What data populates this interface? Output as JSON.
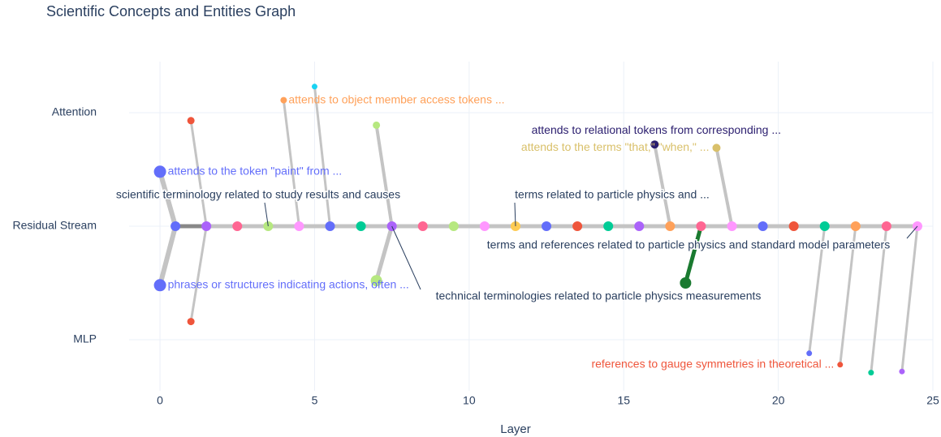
{
  "chart_data": {
    "type": "graph",
    "title": "Scientific Concepts and Entities Graph",
    "xlabel": "Layer",
    "xlim": [
      -1,
      25
    ],
    "xticks": [
      0,
      5,
      10,
      15,
      20,
      25
    ],
    "ylim": [
      -1.45,
      1.45
    ],
    "yticks": [
      {
        "value": 1,
        "label": "Attention"
      },
      {
        "value": 0,
        "label": "Residual Stream"
      },
      {
        "value": -1,
        "label": "MLP"
      }
    ],
    "grid": true,
    "nodes": [
      {
        "x": 0.5,
        "y": 0,
        "color": "#636efa",
        "size": 12
      },
      {
        "x": 1.5,
        "y": 0,
        "color": "#ab63fa",
        "size": 12
      },
      {
        "x": 2.5,
        "y": 0,
        "color": "#ff6692",
        "size": 12
      },
      {
        "x": 3.5,
        "y": 0,
        "color": "#b6e880",
        "size": 12
      },
      {
        "x": 4.5,
        "y": 0,
        "color": "#ff97ff",
        "size": 12
      },
      {
        "x": 5.5,
        "y": 0,
        "color": "#636efa",
        "size": 12
      },
      {
        "x": 6.5,
        "y": 0,
        "color": "#00cc96",
        "size": 12
      },
      {
        "x": 7.5,
        "y": 0,
        "color": "#ab63fa",
        "size": 12
      },
      {
        "x": 8.5,
        "y": 0,
        "color": "#ff6692",
        "size": 12
      },
      {
        "x": 9.5,
        "y": 0,
        "color": "#b6e880",
        "size": 12
      },
      {
        "x": 10.5,
        "y": 0,
        "color": "#ff97ff",
        "size": 12
      },
      {
        "x": 11.5,
        "y": 0,
        "color": "#fecb52",
        "size": 12
      },
      {
        "x": 12.5,
        "y": 0,
        "color": "#636efa",
        "size": 12
      },
      {
        "x": 13.5,
        "y": 0,
        "color": "#ef553b",
        "size": 12
      },
      {
        "x": 14.5,
        "y": 0,
        "color": "#00cc96",
        "size": 12
      },
      {
        "x": 15.5,
        "y": 0,
        "color": "#ab63fa",
        "size": 12
      },
      {
        "x": 16.5,
        "y": 0,
        "color": "#ffa15a",
        "size": 12
      },
      {
        "x": 17.5,
        "y": 0,
        "color": "#ff6692",
        "size": 12
      },
      {
        "x": 18.5,
        "y": 0,
        "color": "#ff97ff",
        "size": 12
      },
      {
        "x": 19.5,
        "y": 0,
        "color": "#636efa",
        "size": 12
      },
      {
        "x": 20.5,
        "y": 0,
        "color": "#ef553b",
        "size": 12
      },
      {
        "x": 21.5,
        "y": 0,
        "color": "#00cc96",
        "size": 12
      },
      {
        "x": 22.5,
        "y": 0,
        "color": "#ffa15a",
        "size": 12
      },
      {
        "x": 23.5,
        "y": 0,
        "color": "#ff6692",
        "size": 12
      },
      {
        "x": 24.5,
        "y": 0,
        "color": "#ff97ff",
        "size": 12
      },
      {
        "x": 0,
        "y": 0.48,
        "color": "#636efa",
        "size": 15,
        "label": "attends to the token \"paint\" from ..."
      },
      {
        "x": 0,
        "y": -0.52,
        "color": "#636efa",
        "size": 15,
        "label": "phrases or structures indicating actions, often ..."
      },
      {
        "x": 1,
        "y": 0.93,
        "color": "#ef553b",
        "size": 9
      },
      {
        "x": 1,
        "y": -0.84,
        "color": "#ef553b",
        "size": 9
      },
      {
        "x": 4,
        "y": 1.11,
        "color": "#ffa15a",
        "size": 8,
        "label": "attends to object member access tokens ..."
      },
      {
        "x": 5,
        "y": 1.23,
        "color": "#19d3f3",
        "size": 7
      },
      {
        "x": 7,
        "y": 0.89,
        "color": "#b6e880",
        "size": 9
      },
      {
        "x": 7,
        "y": -0.48,
        "color": "#b6e880",
        "size": 14
      },
      {
        "x": 16,
        "y": 0.72,
        "color": "#2a1d6e",
        "size": 10,
        "label": "attends to relational tokens from corresponding ..."
      },
      {
        "x": 18,
        "y": 0.69,
        "color": "#d9c06a",
        "size": 10,
        "label": "attends to the terms \"that,\" \"when,\" ..."
      },
      {
        "x": 17,
        "y": -0.5,
        "color": "#1a7a30",
        "size": 14
      },
      {
        "x": 21,
        "y": -1.12,
        "color": "#636efa",
        "size": 7
      },
      {
        "x": 22,
        "y": -1.22,
        "color": "#ef553b",
        "size": 7,
        "label": "references to gauge symmetries in theoretical ..."
      },
      {
        "x": 23,
        "y": -1.29,
        "color": "#00cc96",
        "size": 7
      },
      {
        "x": 24,
        "y": -1.28,
        "color": "#ab63fa",
        "size": 7
      }
    ],
    "edges": [
      {
        "source": 0,
        "target": 1,
        "weight": 5,
        "color": "#888888"
      },
      {
        "source": 1,
        "target": 2,
        "weight": 5,
        "color": "#c4c4c4"
      },
      {
        "source": 2,
        "target": 3,
        "weight": 5,
        "color": "#c4c4c4"
      },
      {
        "source": 3,
        "target": 4,
        "weight": 5,
        "color": "#c4c4c4"
      },
      {
        "source": 4,
        "target": 5,
        "weight": 5,
        "color": "#c4c4c4"
      },
      {
        "source": 5,
        "target": 6,
        "weight": 5,
        "color": "#c4c4c4"
      },
      {
        "source": 6,
        "target": 7,
        "weight": 5,
        "color": "#c4c4c4"
      },
      {
        "source": 7,
        "target": 8,
        "weight": 5,
        "color": "#c4c4c4"
      },
      {
        "source": 8,
        "target": 9,
        "weight": 5,
        "color": "#c4c4c4"
      },
      {
        "source": 9,
        "target": 10,
        "weight": 5,
        "color": "#c4c4c4"
      },
      {
        "source": 10,
        "target": 11,
        "weight": 5,
        "color": "#c4c4c4"
      },
      {
        "source": 11,
        "target": 12,
        "weight": 5,
        "color": "#c4c4c4"
      },
      {
        "source": 12,
        "target": 13,
        "weight": 5,
        "color": "#c4c4c4"
      },
      {
        "source": 13,
        "target": 14,
        "weight": 5,
        "color": "#c4c4c4"
      },
      {
        "source": 14,
        "target": 15,
        "weight": 5,
        "color": "#c4c4c4"
      },
      {
        "source": 15,
        "target": 16,
        "weight": 5,
        "color": "#c4c4c4"
      },
      {
        "source": 16,
        "target": 17,
        "weight": 5,
        "color": "#c4c4c4"
      },
      {
        "source": 17,
        "target": 18,
        "weight": 5,
        "color": "#c4c4c4"
      },
      {
        "source": 18,
        "target": 19,
        "weight": 5,
        "color": "#c4c4c4"
      },
      {
        "source": 19,
        "target": 20,
        "weight": 5,
        "color": "#c4c4c4"
      },
      {
        "source": 20,
        "target": 21,
        "weight": 5,
        "color": "#c4c4c4"
      },
      {
        "source": 21,
        "target": 22,
        "weight": 5,
        "color": "#c4c4c4"
      },
      {
        "source": 22,
        "target": 23,
        "weight": 5,
        "color": "#c4c4c4"
      },
      {
        "source": 23,
        "target": 24,
        "weight": 5,
        "color": "#c4c4c4"
      },
      {
        "source": 25,
        "target": 0,
        "weight": 6,
        "color": "#c4c4c4"
      },
      {
        "source": 26,
        "target": 0,
        "weight": 6,
        "color": "#c4c4c4"
      },
      {
        "source": 27,
        "target": 1,
        "weight": 3,
        "color": "#c4c4c4"
      },
      {
        "source": 28,
        "target": 1,
        "weight": 3,
        "color": "#c4c4c4"
      },
      {
        "source": 29,
        "target": 4,
        "weight": 3,
        "color": "#c4c4c4"
      },
      {
        "source": 30,
        "target": 5,
        "weight": 3,
        "color": "#c4c4c4"
      },
      {
        "source": 31,
        "target": 7,
        "weight": 4,
        "color": "#c4c4c4"
      },
      {
        "source": 32,
        "target": 7,
        "weight": 5,
        "color": "#c4c4c4"
      },
      {
        "source": 33,
        "target": 16,
        "weight": 4,
        "color": "#c4c4c4"
      },
      {
        "source": 34,
        "target": 18,
        "weight": 4,
        "color": "#c4c4c4"
      },
      {
        "source": 35,
        "target": 17,
        "weight": 5,
        "color": "#1a7a30"
      },
      {
        "source": 36,
        "target": 21,
        "weight": 3,
        "color": "#c4c4c4"
      },
      {
        "source": 37,
        "target": 22,
        "weight": 3,
        "color": "#c4c4c4"
      },
      {
        "source": 38,
        "target": 23,
        "weight": 3,
        "color": "#c4c4c4"
      },
      {
        "source": 39,
        "target": 24,
        "weight": 3,
        "color": "#c4c4c4"
      }
    ],
    "annotations": [
      {
        "text": "scientific terminology related to study results and causes",
        "node": 3
      },
      {
        "text": "terms related to particle physics and ...",
        "node": 11
      },
      {
        "text": "technical terminologies related to particle physics measurements",
        "node": 7
      },
      {
        "text": "terms and references related to particle physics and standard model parameters",
        "node": 24
      }
    ]
  }
}
